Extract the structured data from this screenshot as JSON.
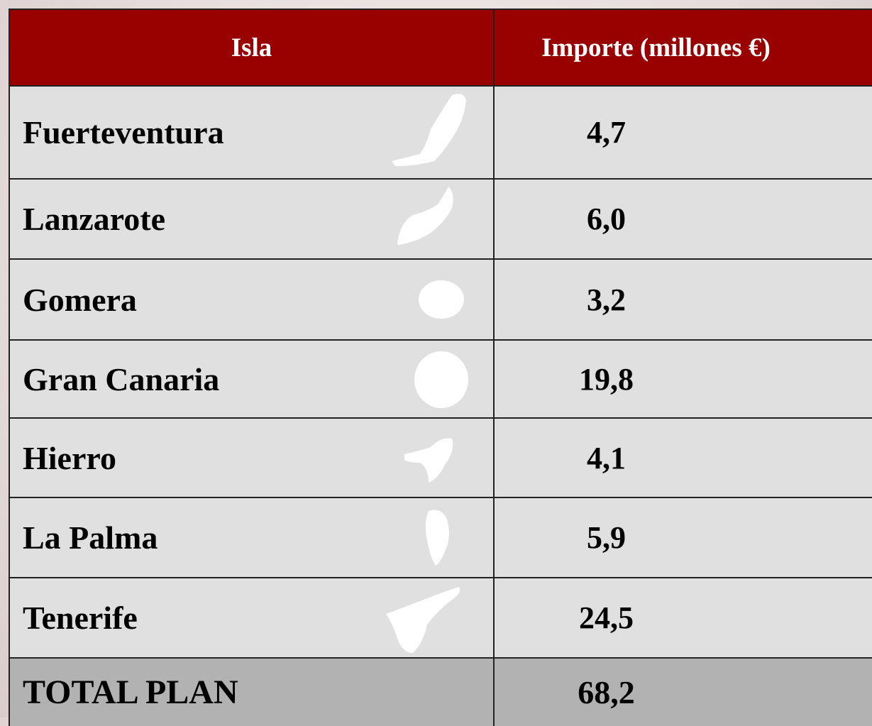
{
  "table": {
    "header": [
      "Isla",
      "Importe (millones €)"
    ],
    "rows": [
      [
        "Fuerteventura",
        "4,7"
      ],
      [
        "Lanzarote",
        "6,0"
      ],
      [
        "Gomera",
        "3,2"
      ],
      [
        "Gran Canaria",
        "19,8"
      ],
      [
        "Hierro",
        "4,1"
      ],
      [
        "La Palma",
        "5,9"
      ],
      [
        "Tenerife",
        "24,5"
      ]
    ],
    "total": [
      "TOTAL PLAN",
      "68,2"
    ]
  }
}
